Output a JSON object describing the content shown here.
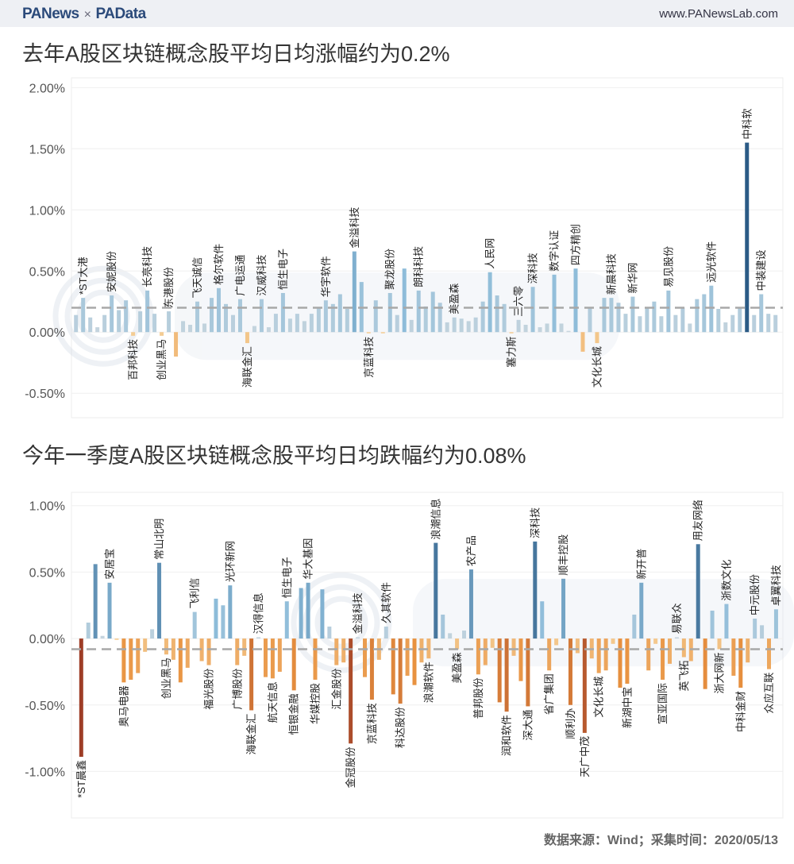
{
  "header": {
    "logo_left": "PANews",
    "logo_sep": "×",
    "logo_right": "PAData",
    "site": "www.PANewsLab.com"
  },
  "footer": "数据来源：Wind；采集时间：2020/05/13",
  "watermarks": [
    "PANews",
    "PAData"
  ],
  "colors": {
    "positive_light": "#c9d6de",
    "positive_mid": "#8bbbd9",
    "positive_dark": "#2b5b86",
    "negative_light": "#f5cf97",
    "negative_mid": "#e8913f",
    "negative_dark": "#9e3d26",
    "mean_line": "#a8a8a8"
  },
  "chart_data": [
    {
      "type": "bar",
      "title": "去年A股区块链概念股平均日均涨幅约为0.2%",
      "ylim": [
        -0.7,
        2.08
      ],
      "yticks": [
        2.0,
        1.5,
        1.0,
        0.5,
        0.0,
        -0.5
      ],
      "ytick_labels": [
        "2.00%",
        "1.50%",
        "1.00%",
        "0.50%",
        "0.00%",
        "-0.50%"
      ],
      "mean_line": 0.2,
      "grid": true,
      "categories": [
        "",
        "*ST大港",
        "",
        "",
        "",
        "安妮股份",
        "",
        "",
        "百邦科技",
        "",
        "长亮科技",
        "",
        "创业黑马",
        "东港股份",
        "",
        "",
        "",
        "飞天诚信",
        "",
        "",
        "格尔软件",
        "",
        "",
        "广电运通",
        "海联金汇",
        "",
        "汉威科技",
        "",
        "",
        "恒生电子",
        "",
        "",
        "",
        "",
        "",
        "华宇软件",
        "",
        "",
        "",
        "金溢科技",
        "",
        "京蓝科技",
        "",
        "",
        "聚龙股份",
        "",
        "",
        "",
        "朗科科技",
        "",
        "",
        "",
        "",
        "美盈森",
        "",
        "",
        "",
        "",
        "人民网",
        "",
        "",
        "塞力斯",
        "三六零",
        "",
        "深科技",
        "",
        "",
        "数字认证",
        "",
        "",
        "四方精创",
        "",
        "",
        "文化长城",
        "",
        "新晨科技",
        "",
        "",
        "新华网",
        "",
        "",
        "",
        "",
        "易见股份",
        "",
        "",
        "",
        "",
        "",
        "远光软件",
        "",
        "",
        "",
        "",
        "中科软",
        "",
        "中装建设",
        "",
        ""
      ],
      "values": [
        0.14,
        0.28,
        0.12,
        0.04,
        0.14,
        0.3,
        0.18,
        0.26,
        -0.03,
        0.17,
        0.34,
        0.15,
        -0.03,
        0.17,
        -0.2,
        0.09,
        0.06,
        0.25,
        0.07,
        0.28,
        0.36,
        0.23,
        0.14,
        0.27,
        -0.09,
        0.05,
        0.27,
        0.04,
        0.15,
        0.32,
        0.11,
        0.15,
        0.09,
        0.15,
        0.2,
        0.26,
        0.23,
        0.31,
        0.19,
        0.66,
        0.41,
        -0.01,
        0.26,
        -0.01,
        0.32,
        0.14,
        0.52,
        0.1,
        0.34,
        0.21,
        0.33,
        0.24,
        0.08,
        0.12,
        0.11,
        0.09,
        0.12,
        0.25,
        0.49,
        0.3,
        0.23,
        -0.01,
        0.1,
        0.06,
        0.37,
        0.04,
        0.07,
        0.47,
        0.07,
        0.01,
        0.52,
        -0.16,
        0.2,
        -0.09,
        0.28,
        0.28,
        0.24,
        0.15,
        0.29,
        0.13,
        0.2,
        0.25,
        0.13,
        0.34,
        0.14,
        0.2,
        0.07,
        0.27,
        0.31,
        0.38,
        0.19,
        0.08,
        0.14,
        0.2,
        1.55,
        0.14,
        0.31,
        0.15,
        0.14
      ]
    },
    {
      "type": "bar",
      "title": "今年一季度A股区块链概念股平均日均跌幅约为0.08%",
      "ylim": [
        -1.35,
        1.1
      ],
      "yticks": [
        1.0,
        0.5,
        0.0,
        -0.5,
        -1.0
      ],
      "ytick_labels": [
        "1.00%",
        "0.50%",
        "0.00%",
        "-0.50%",
        "-1.00%"
      ],
      "mean_line": -0.08,
      "grid": true,
      "categories": [
        "*ST晨鑫",
        "",
        "",
        "",
        "安居宝",
        "",
        "奥马电器",
        "",
        "",
        "",
        "",
        "常山北明",
        "创业黑马",
        "",
        "",
        "",
        "飞利信",
        "",
        "福光股份",
        "",
        "",
        "光环新网",
        "广博股份",
        "",
        "海联金汇",
        "汉得信息",
        "",
        "航天信息",
        "",
        "恒生电子",
        "恒银金融",
        "",
        "华大基因",
        "华媒控股",
        "",
        "",
        "汇金股份",
        "",
        "金冠股份",
        "金溢科技",
        "",
        "京蓝科技",
        "",
        "久其软件",
        "",
        "科达股份",
        "",
        "",
        "",
        "浪潮软件",
        "浪潮信息",
        "",
        "",
        "美盈森",
        "",
        "农产品",
        "普邦股份",
        "",
        "",
        "",
        "润和软件",
        "",
        "",
        "深大通",
        "深科技",
        "",
        "省广集团",
        "",
        "顺丰控股",
        "顺利办",
        "",
        "天广中茂",
        "",
        "文化长城",
        "",
        "",
        "",
        "新湖中宝",
        "",
        "新开普",
        "",
        "",
        "宣亚国际",
        "",
        "易联众",
        "英飞拓",
        "",
        "用友网络",
        "",
        "",
        "浙大网新",
        "浙数文化",
        "",
        "中科金财",
        "",
        "中元股份",
        "",
        "众应互联",
        "卓翼科技"
      ],
      "values": [
        -0.89,
        0.12,
        0.56,
        0.02,
        0.42,
        -0.01,
        -0.33,
        -0.31,
        -0.26,
        -0.1,
        0.07,
        0.57,
        -0.12,
        -0.16,
        -0.33,
        -0.22,
        0.2,
        -0.17,
        -0.2,
        0.3,
        0.25,
        0.4,
        -0.2,
        -0.13,
        -0.54,
        0.01,
        -0.29,
        -0.3,
        -0.25,
        0.28,
        -0.39,
        0.38,
        0.42,
        -0.31,
        0.37,
        0.09,
        -0.2,
        -0.18,
        -0.79,
        0.01,
        -0.29,
        -0.46,
        -0.16,
        0.09,
        -0.42,
        -0.49,
        -0.28,
        -0.35,
        -0.18,
        -0.15,
        0.72,
        0.18,
        0.04,
        -0.08,
        0.06,
        0.52,
        -0.27,
        -0.2,
        -0.07,
        -0.48,
        -0.55,
        -0.13,
        -0.32,
        -0.51,
        0.73,
        0.28,
        -0.24,
        -0.05,
        0.45,
        -0.5,
        -0.11,
        -0.71,
        -0.15,
        -0.26,
        -0.24,
        -0.04,
        -0.37,
        -0.34,
        0.18,
        0.42,
        -0.24,
        -0.04,
        -0.31,
        -0.19,
        0.01,
        -0.14,
        -0.17,
        0.71,
        -0.38,
        0.21,
        -0.08,
        0.26,
        -0.28,
        -0.37,
        -0.18,
        0.15,
        0.1,
        -0.23,
        0.22
      ]
    }
  ]
}
